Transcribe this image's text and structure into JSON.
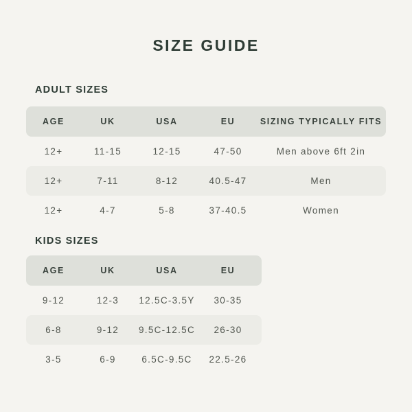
{
  "page": {
    "title": "SIZE GUIDE"
  },
  "colors": {
    "background": "#f5f4f0",
    "table_header_bg": "#dee0da",
    "stripe_row_bg": "#ecece7",
    "heading_text": "#2e3c35",
    "body_text": "#51564f"
  },
  "adult": {
    "heading": "ADULT SIZES",
    "columns": [
      "AGE",
      "UK",
      "USA",
      "EU",
      "SIZING TYPICALLY FITS"
    ],
    "rows": [
      [
        "12+",
        "11-15",
        "12-15",
        "47-50",
        "Men above 6ft 2in"
      ],
      [
        "12+",
        "7-11",
        "8-12",
        "40.5-47",
        "Men"
      ],
      [
        "12+",
        "4-7",
        "5-8",
        "37-40.5",
        "Women"
      ]
    ]
  },
  "kids": {
    "heading": "KIDS SIZES",
    "columns": [
      "AGE",
      "UK",
      "USA",
      "EU"
    ],
    "rows": [
      [
        "9-12",
        "12-3",
        "12.5C-3.5Y",
        "30-35"
      ],
      [
        "6-8",
        "9-12",
        "9.5C-12.5C",
        "26-30"
      ],
      [
        "3-5",
        "6-9",
        "6.5C-9.5C",
        "22.5-26"
      ]
    ]
  }
}
